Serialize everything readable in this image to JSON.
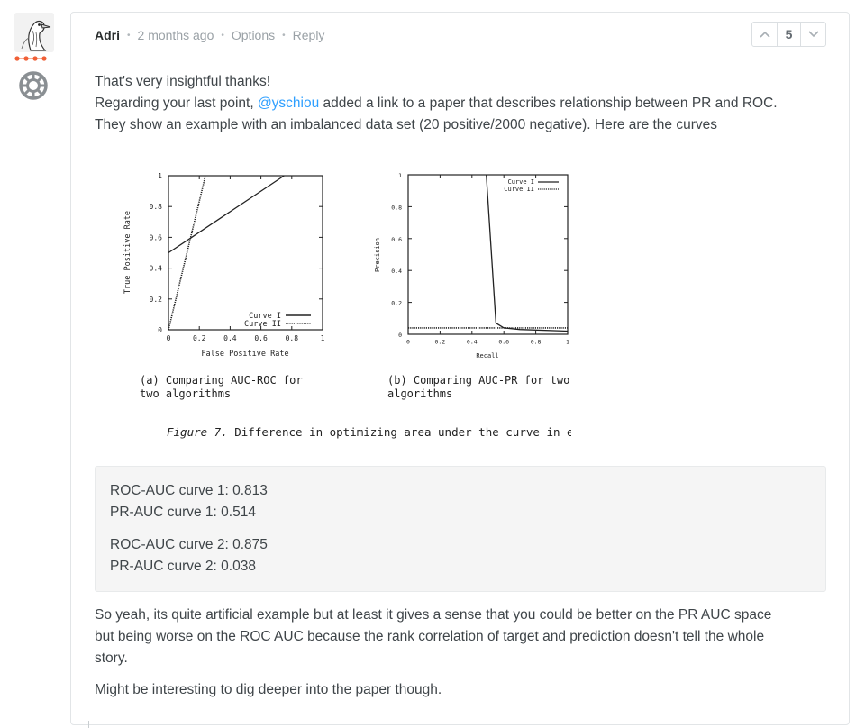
{
  "comment": {
    "author": "Adri",
    "time": "2 months ago",
    "options_label": "Options",
    "reply_label": "Reply",
    "vote_count": "5",
    "paragraph1_line1": "That's very insightful thanks!",
    "paragraph1_line2_pre": "Regarding your last point, ",
    "mention": "@yschiou",
    "paragraph1_line2_post": " added a link to a paper that describes relationship between PR and ROC.",
    "paragraph1_line3": "They show an example with an imbalanced data set (20 positive/2000 negative). Here are the curves",
    "code_lines": [
      "ROC-AUC curve 1: 0.813",
      "PR-AUC curve 1: 0.514",
      "ROC-AUC curve 2: 0.875",
      "PR-AUC curve 2: 0.038"
    ],
    "paragraph2_line1": "So yeah, its quite artificial example but at least it gives a sense that you could be better on the PR AUC space",
    "paragraph2_line2": "but being worse on the ROC AUC because the rank correlation of target and prediction doesn't tell the whole",
    "paragraph2_line3": "story.",
    "paragraph3": "Might be interesting to dig deeper into the paper though."
  },
  "icons": {
    "avatar": "bird-avatar-icon",
    "badge": "gear-badge-icon",
    "upvote": "chevron-up-icon",
    "downvote": "chevron-down-icon"
  },
  "colors": {
    "mention": "#2e9fff",
    "dots": "#f05f36",
    "author": "#2a2e2e"
  },
  "figure": {
    "roc": {
      "ylabel": "True Positive Rate",
      "xlabel": "False Positive Rate",
      "yticks": [
        "0",
        "0.2",
        "0.4",
        "0.6",
        "0.8",
        "1"
      ],
      "xticks": [
        "0",
        "0.2",
        "0.4",
        "0.6",
        "0.8",
        "1"
      ],
      "legend": [
        "Curve I",
        "Curve II"
      ],
      "caption_line1": "(a)  Comparing  AUC-ROC  for",
      "caption_line2": "two algorithms"
    },
    "pr": {
      "ylabel": "Precision",
      "xlabel": "Recall",
      "yticks": [
        "0",
        "0.2",
        "0.4",
        "0.6",
        "0.8",
        "1"
      ],
      "xticks": [
        "0",
        "0.2",
        "0.4",
        "0.6",
        "0.8",
        "1"
      ],
      "legend": [
        "Curve I",
        "Curve II"
      ],
      "caption_line1": "(b) Comparing AUC-PR for two",
      "caption_line2": "algorithms"
    },
    "caption_label": "Figure 7.",
    "caption_text": " Difference in optimizing area under the curve in each space"
  },
  "chart_data": [
    {
      "type": "line",
      "xlabel": "False Positive Rate",
      "ylabel": "True Positive Rate",
      "xlim": [
        0,
        1
      ],
      "ylim": [
        0,
        1
      ],
      "legend_position": "bottom-right",
      "series": [
        {
          "name": "Curve I",
          "style": "solid",
          "points": [
            [
              0,
              0.5
            ],
            [
              0.15,
              0.6
            ],
            [
              0.75,
              1
            ]
          ]
        },
        {
          "name": "Curve II",
          "style": "dotted",
          "points": [
            [
              0,
              0
            ],
            [
              0.24,
              1
            ]
          ]
        }
      ]
    },
    {
      "type": "line",
      "xlabel": "Recall",
      "ylabel": "Precision",
      "xlim": [
        0,
        1
      ],
      "ylim": [
        0,
        1
      ],
      "legend_position": "top-right",
      "series": [
        {
          "name": "Curve I",
          "style": "solid",
          "points": [
            [
              0.49,
              1
            ],
            [
              0.55,
              0.07
            ],
            [
              0.6,
              0.04
            ],
            [
              0.7,
              0.03
            ],
            [
              1,
              0.02
            ]
          ]
        },
        {
          "name": "Curve II",
          "style": "dotted",
          "points": [
            [
              0,
              0.04
            ],
            [
              1,
              0.04
            ]
          ]
        }
      ]
    }
  ]
}
